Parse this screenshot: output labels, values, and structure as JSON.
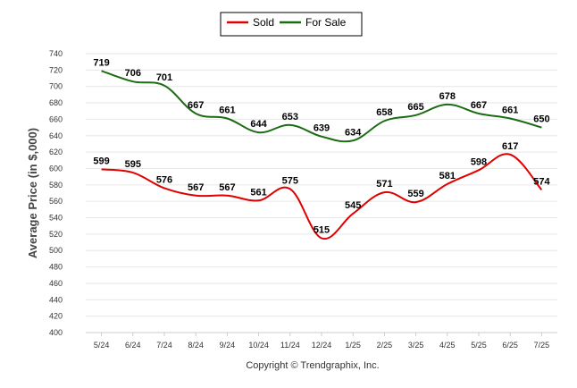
{
  "chart_data": {
    "type": "line",
    "categories": [
      "5/24",
      "6/24",
      "7/24",
      "8/24",
      "9/24",
      "10/24",
      "11/24",
      "12/24",
      "1/25",
      "2/25",
      "3/25",
      "4/25",
      "5/25",
      "6/25",
      "7/25"
    ],
    "series": [
      {
        "name": "Sold",
        "color": "#e00000",
        "values": [
          599,
          595,
          576,
          567,
          567,
          561,
          575,
          515,
          545,
          571,
          559,
          581,
          598,
          617,
          574
        ]
      },
      {
        "name": "For Sale",
        "color": "#1a6b12",
        "values": [
          719,
          706,
          701,
          667,
          661,
          644,
          653,
          639,
          634,
          658,
          665,
          678,
          667,
          661,
          650
        ]
      }
    ],
    "ylabel": "Average Price (in $,000)",
    "xlabel": "",
    "ylim": [
      400,
      740
    ],
    "yticks": [
      400,
      420,
      440,
      460,
      480,
      500,
      520,
      540,
      560,
      580,
      600,
      620,
      640,
      660,
      680,
      700,
      720,
      740
    ],
    "grid": true,
    "legend": "top-center",
    "footer": "Copyright © Trendgraphix, Inc."
  }
}
